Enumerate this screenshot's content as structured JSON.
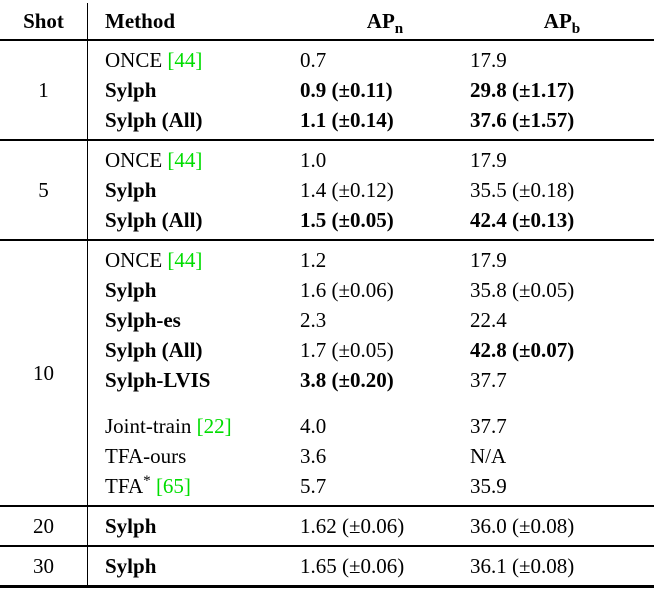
{
  "colors": {
    "citation": "#00dd00",
    "text": "#000000",
    "rule": "#000000"
  },
  "header": {
    "shot": "Shot",
    "method": "Method",
    "apn": {
      "base": "AP",
      "sub": "n"
    },
    "apb": {
      "base": "AP",
      "sub": "b"
    }
  },
  "groups": [
    {
      "shot": "1",
      "rows": [
        {
          "method": "ONCE",
          "cite": "[44]",
          "apn": "0.7",
          "apb": "17.9"
        },
        {
          "method": "Sylph",
          "apn": "0.9 (±0.11)",
          "apb": "29.8 (±1.17)"
        },
        {
          "method": "Sylph (All)",
          "apn": "1.1 (±0.14)",
          "apb": "37.6 (±1.57)"
        }
      ]
    },
    {
      "shot": "5",
      "rows": [
        {
          "method": "ONCE",
          "cite": "[44]",
          "apn": "1.0",
          "apb": "17.9"
        },
        {
          "method": "Sylph",
          "apn": "1.4 (±0.12)",
          "apb": "35.5 (±0.18)"
        },
        {
          "method": "Sylph (All)",
          "apn": "1.5 (±0.05)",
          "apb": "42.4 (±0.13)"
        }
      ]
    },
    {
      "shot": "10",
      "rows": [
        {
          "method": "ONCE",
          "cite": "[44]",
          "apn": "1.2",
          "apb": "17.9"
        },
        {
          "method": "Sylph",
          "apn": "1.6 (±0.06)",
          "apb": "35.8 (±0.05)"
        },
        {
          "method": "Sylph-es",
          "apn": "2.3",
          "apb": "22.4"
        },
        {
          "method": "Sylph (All)",
          "apn": "1.7 (±0.05)",
          "apb": "42.8 (±0.07)"
        },
        {
          "method": "Sylph-LVIS",
          "apn": "3.8 (±0.20)",
          "apb": "37.7"
        },
        {
          "method": "Joint-train",
          "cite": "[22]",
          "apn": "4.0",
          "apb": "37.7"
        },
        {
          "method": "TFA-ours",
          "apn": "3.6",
          "apb": "N/A"
        },
        {
          "method": "TFA",
          "sup": "*",
          "cite": "[65]",
          "apn": "5.7",
          "apb": "35.9"
        }
      ]
    },
    {
      "shot": "20",
      "rows": [
        {
          "method": "Sylph",
          "apn": "1.62 (±0.06)",
          "apb": "36.0 (±0.08)"
        }
      ]
    },
    {
      "shot": "30",
      "rows": [
        {
          "method": "Sylph",
          "apn": "1.65 (±0.06)",
          "apb": "36.1 (±0.08)"
        }
      ]
    }
  ]
}
